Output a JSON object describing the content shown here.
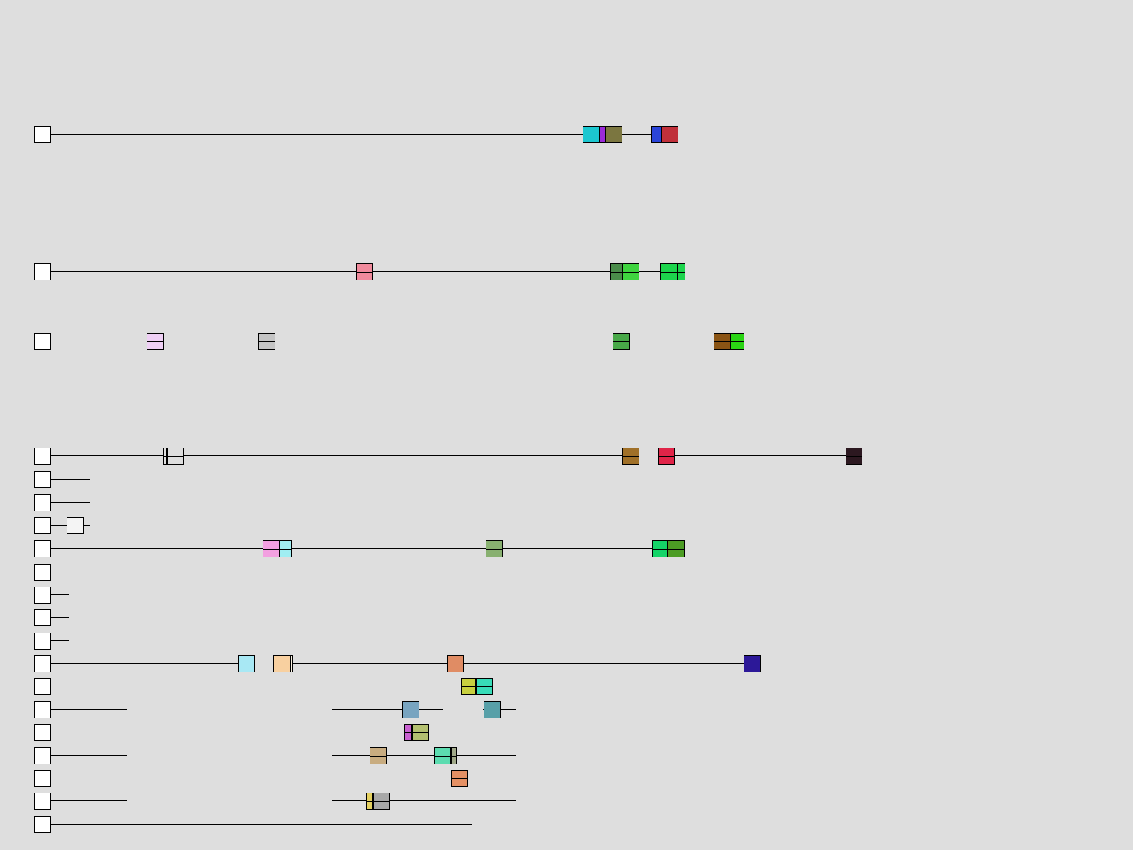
{
  "tracks": [
    {
      "blocks": [
        {
          "x0": 823,
          "x1": 847,
          "color": "#1cc7d0"
        },
        {
          "x0": 847,
          "x1": 855,
          "color": "#9b2ad9"
        },
        {
          "x0": 855,
          "x1": 879,
          "color": "#7b7640"
        },
        {
          "x0": 920,
          "x1": 934,
          "color": "#2a44d9"
        },
        {
          "x0": 934,
          "x1": 958,
          "color": "#c0303a"
        }
      ]
    },
    {
      "blocks": [
        {
          "x0": 503,
          "x1": 527,
          "color": "#f08a9c"
        },
        {
          "x0": 862,
          "x1": 879,
          "color": "#4a8c4a"
        },
        {
          "x0": 879,
          "x1": 903,
          "color": "#3fd43f"
        },
        {
          "x0": 932,
          "x1": 957,
          "color": "#1cd44c"
        },
        {
          "x0": 957,
          "x1": 968,
          "color": "#1cd44c"
        }
      ]
    },
    {
      "blocks": [
        {
          "x0": 207,
          "x1": 231,
          "color": "#efd0f5"
        },
        {
          "x0": 365,
          "x1": 389,
          "color": "#c4c4c4"
        },
        {
          "x0": 865,
          "x1": 889,
          "color": "#48a848"
        },
        {
          "x0": 1008,
          "x1": 1032,
          "color": "#8a5414"
        },
        {
          "x0": 1032,
          "x1": 1051,
          "color": "#2ad414"
        }
      ]
    },
    {
      "blocks": [
        {
          "x0": 230,
          "x1": 236,
          "color": "#dedede"
        },
        {
          "x0": 236,
          "x1": 260,
          "color": "#dedede"
        },
        {
          "x0": 879,
          "x1": 903,
          "color": "#a07028"
        },
        {
          "x0": 929,
          "x1": 953,
          "color": "#e02448"
        },
        {
          "x0": 1194,
          "x1": 1218,
          "color": "#2c1820"
        }
      ]
    },
    {
      "blocks": []
    },
    {
      "blocks": []
    },
    {
      "blocks": [
        {
          "x0": 94,
          "x1": 118,
          "color": "#f4f4f4"
        }
      ]
    },
    {
      "blocks": [
        {
          "x0": 371,
          "x1": 395,
          "color": "#f2a0e0"
        },
        {
          "x0": 395,
          "x1": 412,
          "color": "#a0eef2"
        },
        {
          "x0": 686,
          "x1": 710,
          "color": "#88b070"
        },
        {
          "x0": 921,
          "x1": 943,
          "color": "#14d468"
        },
        {
          "x0": 943,
          "x1": 967,
          "color": "#4c9c24"
        }
      ]
    },
    {
      "blocks": []
    },
    {
      "blocks": []
    },
    {
      "blocks": []
    },
    {
      "blocks": []
    },
    {
      "blocks": [
        {
          "x0": 336,
          "x1": 360,
          "color": "#a8e8f4"
        },
        {
          "x0": 386,
          "x1": 410,
          "color": "#f8d0a0"
        },
        {
          "x0": 410,
          "x1": 414,
          "color": "#f8f0e0"
        },
        {
          "x0": 631,
          "x1": 655,
          "color": "#e08c64"
        },
        {
          "x0": 1050,
          "x1": 1074,
          "color": "#2c1898"
        }
      ]
    },
    {
      "blocks": [
        {
          "x0": 651,
          "x1": 672,
          "color": "#c8d040"
        },
        {
          "x0": 672,
          "x1": 696,
          "color": "#38dcb8"
        }
      ]
    },
    {
      "blocks": [
        {
          "x0": 568,
          "x1": 592,
          "color": "#78a4c0"
        },
        {
          "x0": 683,
          "x1": 707,
          "color": "#58a0a8"
        }
      ]
    },
    {
      "blocks": [
        {
          "x0": 571,
          "x1": 582,
          "color": "#c860d0"
        },
        {
          "x0": 582,
          "x1": 606,
          "color": "#b4c070"
        }
      ]
    },
    {
      "blocks": [
        {
          "x0": 522,
          "x1": 546,
          "color": "#c8ac80"
        },
        {
          "x0": 613,
          "x1": 637,
          "color": "#5cdcb0"
        },
        {
          "x0": 637,
          "x1": 645,
          "color": "#a0a888"
        }
      ]
    },
    {
      "blocks": [
        {
          "x0": 637,
          "x1": 661,
          "color": "#e49064"
        }
      ]
    },
    {
      "blocks": [
        {
          "x0": 517,
          "x1": 527,
          "color": "#e4d060"
        },
        {
          "x0": 527,
          "x1": 551,
          "color": "#a8a8a8"
        }
      ]
    },
    {
      "blocks": []
    }
  ]
}
